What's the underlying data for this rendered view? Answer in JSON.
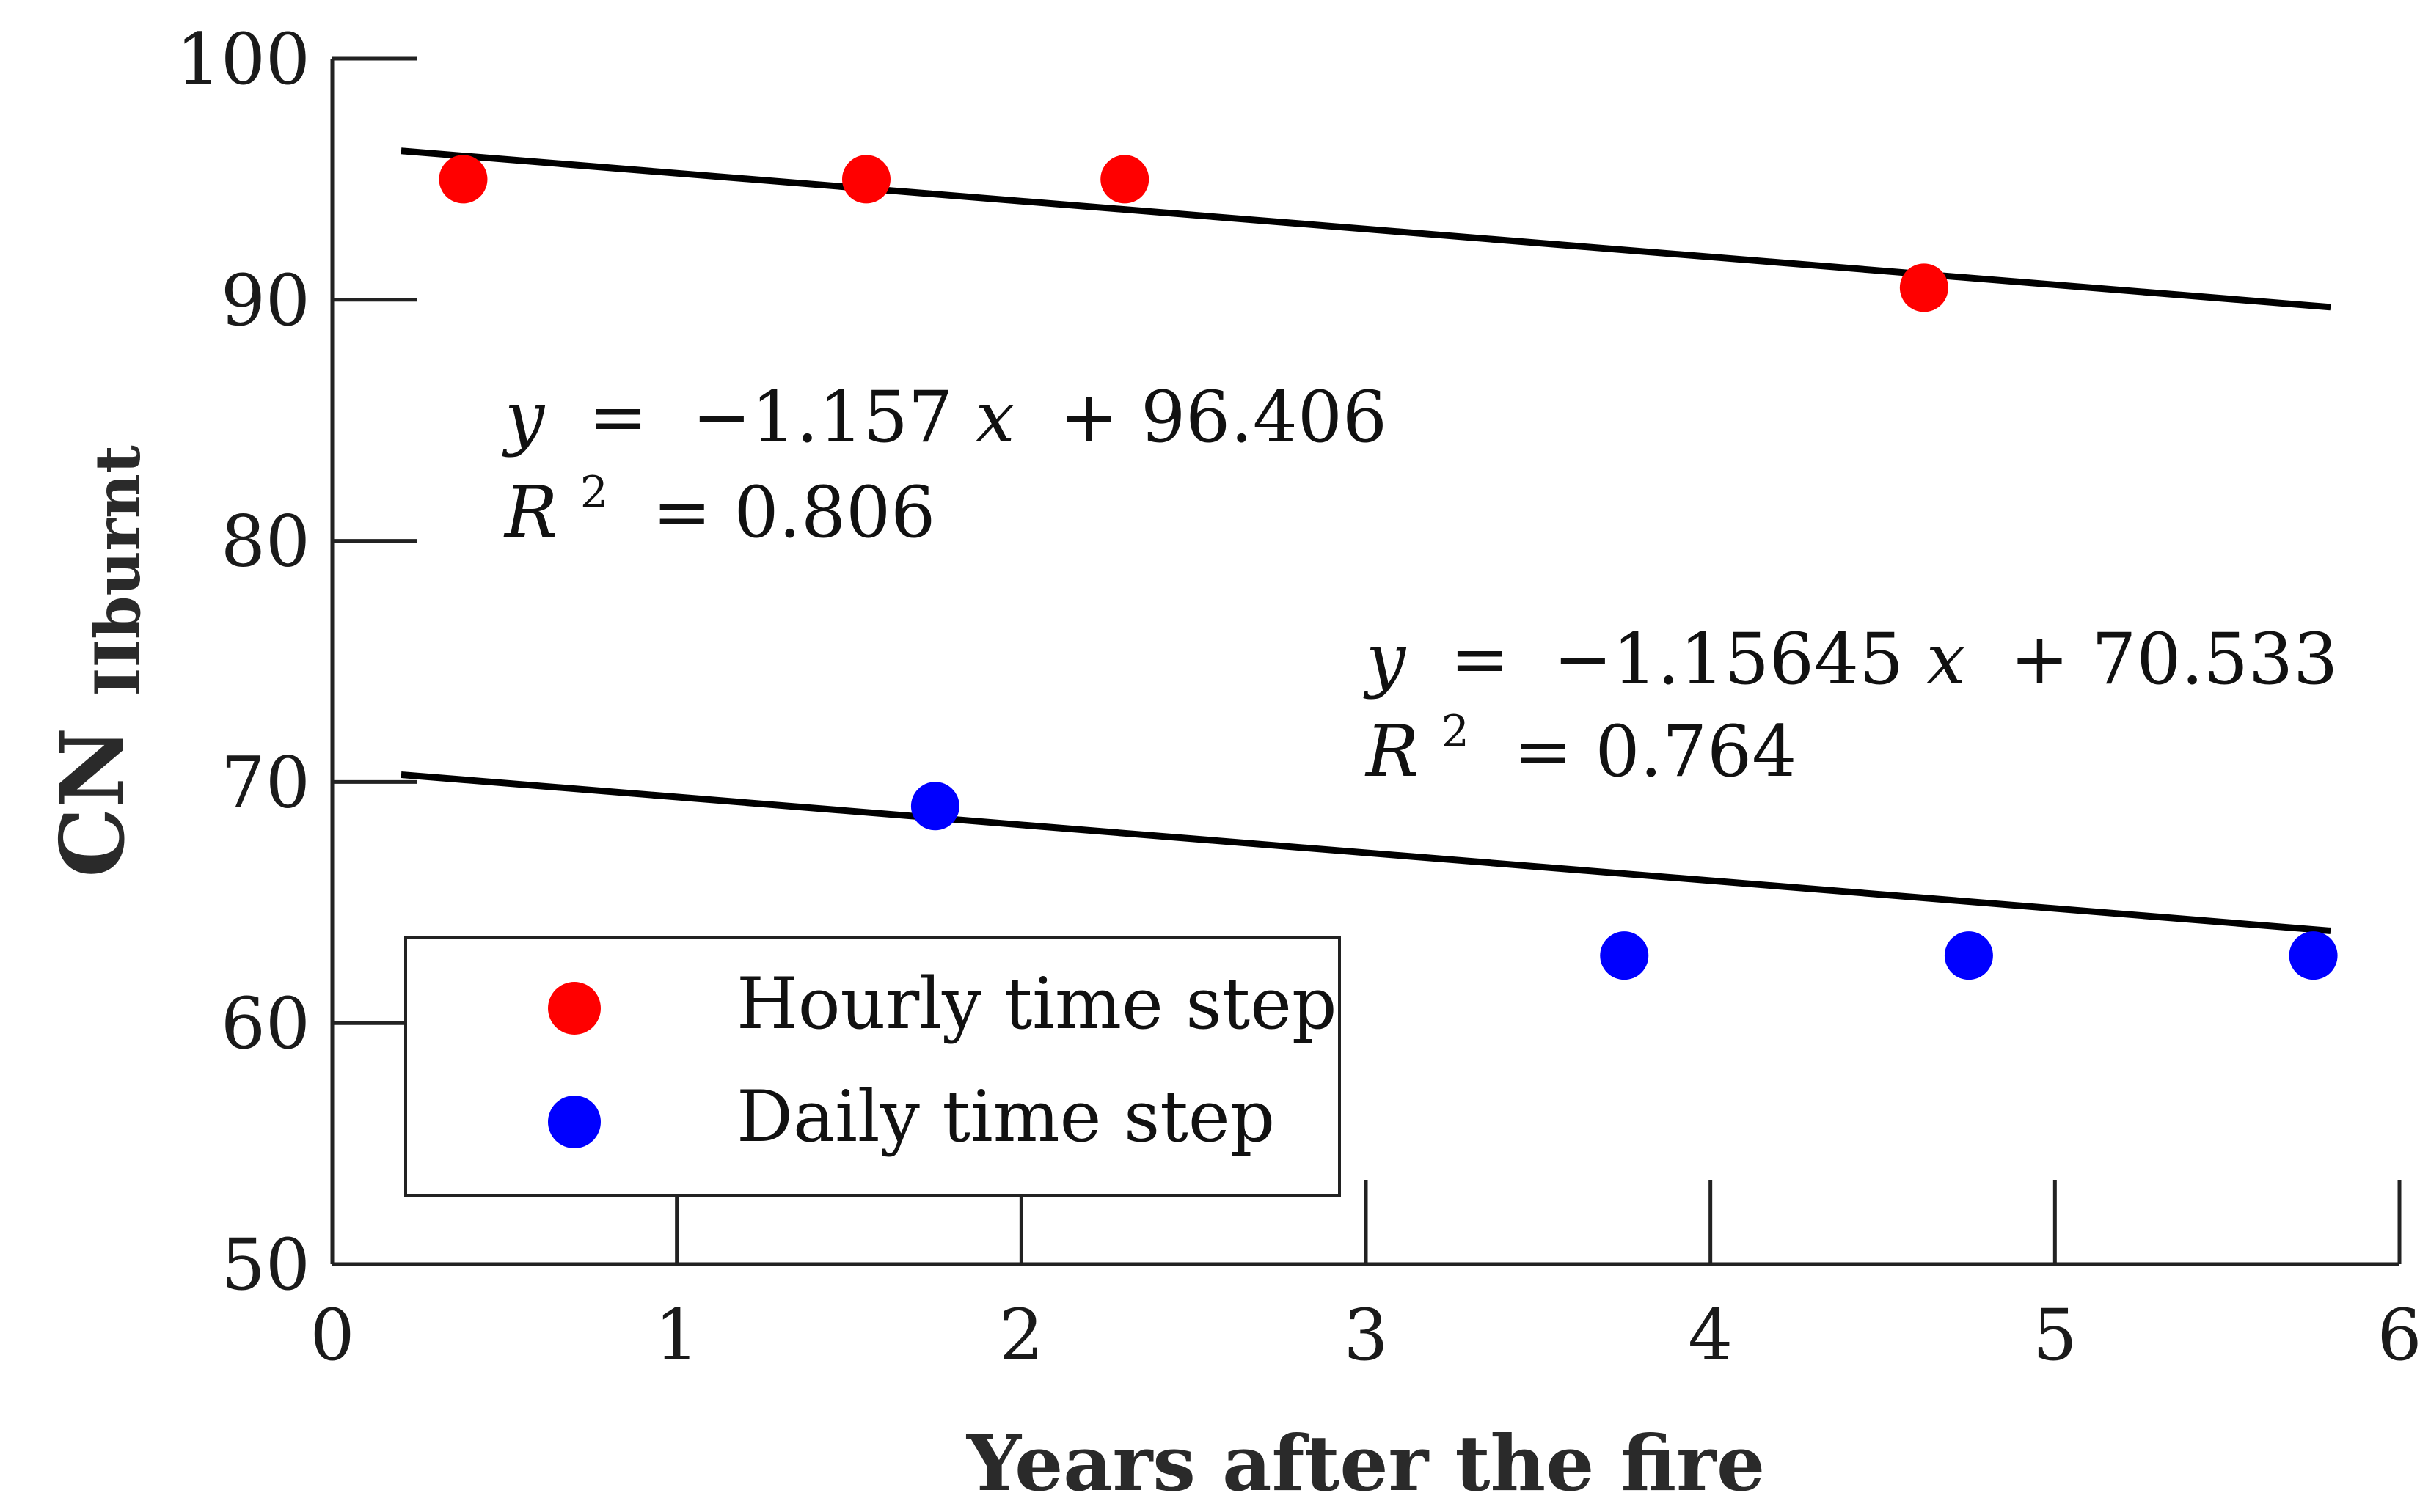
{
  "chart_data": {
    "type": "scatter",
    "xlabel": "Years after the fire",
    "ylabel": "CN",
    "ylabel_sub": "IIburnt",
    "xlim": [
      0,
      6
    ],
    "ylim": [
      50,
      100
    ],
    "xticks": [
      0,
      1,
      2,
      3,
      4,
      5,
      6
    ],
    "yticks": [
      50,
      60,
      70,
      80,
      90,
      100
    ],
    "grid": false,
    "legend_position": "bottom-left",
    "series": [
      {
        "name": "Hourly time step",
        "color": "#ff0000",
        "points": [
          {
            "x": 0.38,
            "y": 95.0
          },
          {
            "x": 1.55,
            "y": 95.0
          },
          {
            "x": 2.3,
            "y": 95.0
          },
          {
            "x": 4.62,
            "y": 90.5
          }
        ],
        "fit": {
          "slope": -1.157,
          "intercept": 96.406,
          "x_range": [
            0.2,
            5.8
          ]
        },
        "equation": {
          "y_label": "y",
          "equals": "=",
          "rhs": "−1.157",
          "x_var": "x",
          "tail": "+ 96.406",
          "r_label": "R",
          "r_sup": "2",
          "r_rhs": "= 0.806"
        }
      },
      {
        "name": "Daily time step",
        "color": "#0000ff",
        "points": [
          {
            "x": 1.75,
            "y": 69.0
          },
          {
            "x": 3.75,
            "y": 62.8
          },
          {
            "x": 4.75,
            "y": 62.8
          },
          {
            "x": 5.75,
            "y": 62.8
          }
        ],
        "fit": {
          "slope": -1.15645,
          "intercept": 70.533,
          "x_range": [
            0.2,
            5.8
          ]
        },
        "equation": {
          "y_label": "y",
          "equals": "=",
          "rhs": "−1.15645",
          "x_var": "x",
          "tail": "+ 70.533",
          "r_label": "R",
          "r_sup": "2",
          "r_rhs": "= 0.764"
        }
      }
    ]
  }
}
